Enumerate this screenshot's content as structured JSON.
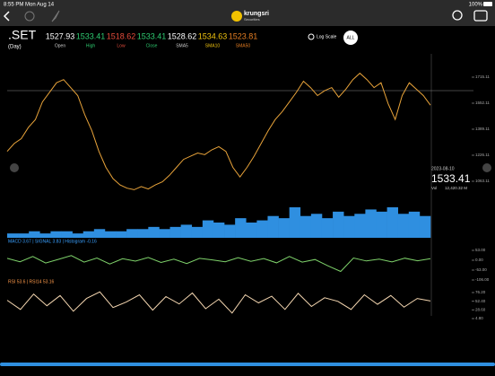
{
  "status": {
    "time": "8:55 PM",
    "date": "Mon Aug 14",
    "battery": "100%"
  },
  "header": {
    "brand": "krungsri",
    "subtitle": "Securities"
  },
  "quote": {
    "symbol": ".SET",
    "period": "(Day)",
    "fields": [
      {
        "value": "1527.93",
        "label": "Open",
        "color": "#ffffff"
      },
      {
        "value": "1533.41",
        "label": "High",
        "color": "#2ecc71"
      },
      {
        "value": "1518.62",
        "label": "Low",
        "color": "#e74c3c"
      },
      {
        "value": "1533.41",
        "label": "Close",
        "color": "#2ecc71"
      },
      {
        "value": "1528.62",
        "label": "SMA5",
        "color": "#ffffff"
      },
      {
        "value": "1534.63",
        "label": "SMA10",
        "color": "#f1c40f"
      },
      {
        "value": "1523.81",
        "label": "SMA50",
        "color": "#e67e22"
      }
    ],
    "log_scale": "Log Scale",
    "range": "ALL"
  },
  "price_axis": {
    "ticks": [
      {
        "value": 1715.11,
        "label": "1715.11"
      },
      {
        "value": 1552.11,
        "label": "1552.11"
      },
      {
        "value": 1389.11,
        "label": "1389.11"
      },
      {
        "value": 1226.11,
        "label": "1226.11"
      },
      {
        "value": 1063.11,
        "label": "1063.11"
      }
    ]
  },
  "price_series": [
    1250,
    1300,
    1330,
    1400,
    1450,
    1560,
    1620,
    1680,
    1700,
    1650,
    1600,
    1480,
    1380,
    1250,
    1150,
    1080,
    1040,
    1020,
    1010,
    1030,
    1015,
    1040,
    1060,
    1100,
    1150,
    1200,
    1220,
    1240,
    1230,
    1260,
    1280,
    1250,
    1150,
    1090,
    1150,
    1220,
    1300,
    1380,
    1450,
    1500,
    1560,
    1620,
    1690,
    1650,
    1600,
    1630,
    1650,
    1590,
    1640,
    1700,
    1740,
    1700,
    1650,
    1680,
    1550,
    1450,
    1600,
    1680,
    1640,
    1600,
    1540
  ],
  "last": {
    "date": "2023-08-10",
    "price": "1533.41",
    "vol_label": "Vol",
    "volume": "12,420.32 M"
  },
  "volume_series": [
    2,
    2,
    3,
    2,
    3,
    3,
    2,
    3,
    4,
    3,
    3,
    4,
    4,
    5,
    4,
    5,
    6,
    5,
    8,
    7,
    6,
    9,
    7,
    8,
    10,
    9,
    14,
    10,
    11,
    9,
    12,
    10,
    11,
    13,
    12,
    14,
    11,
    12,
    10
  ],
  "macd": {
    "label": "MACD 3.67 | SIGNAL 3.83 | Histogram -0.16",
    "ticks": [
      {
        "value": 53,
        "label": "53.00"
      },
      {
        "value": 0,
        "label": "0.00"
      },
      {
        "value": -53,
        "label": "-53.00"
      },
      {
        "value": -106,
        "label": "-106.00"
      }
    ],
    "series": [
      10,
      -8,
      20,
      -15,
      5,
      25,
      -10,
      12,
      -20,
      8,
      -5,
      15,
      -12,
      6,
      -18,
      10,
      2,
      -8,
      14,
      -6,
      9,
      -14,
      20,
      -10,
      4,
      -30,
      -60,
      12,
      -4,
      6,
      -9,
      11,
      -3,
      8
    ]
  },
  "rsi": {
    "label": "RSI 53.6 | RSI14 53.16",
    "ticks": [
      {
        "value": 76.2,
        "label": "76.20"
      },
      {
        "value": 52.4,
        "label": "52.40"
      },
      {
        "value": 28.6,
        "label": "28.60"
      },
      {
        "value": 4.8,
        "label": "4.80"
      }
    ],
    "series": [
      55,
      30,
      72,
      40,
      68,
      25,
      60,
      78,
      35,
      50,
      70,
      28,
      65,
      45,
      75,
      32,
      58,
      20,
      70,
      48,
      66,
      30,
      74,
      38,
      62,
      52,
      30,
      70,
      44,
      68,
      36,
      60,
      53
    ]
  }
}
